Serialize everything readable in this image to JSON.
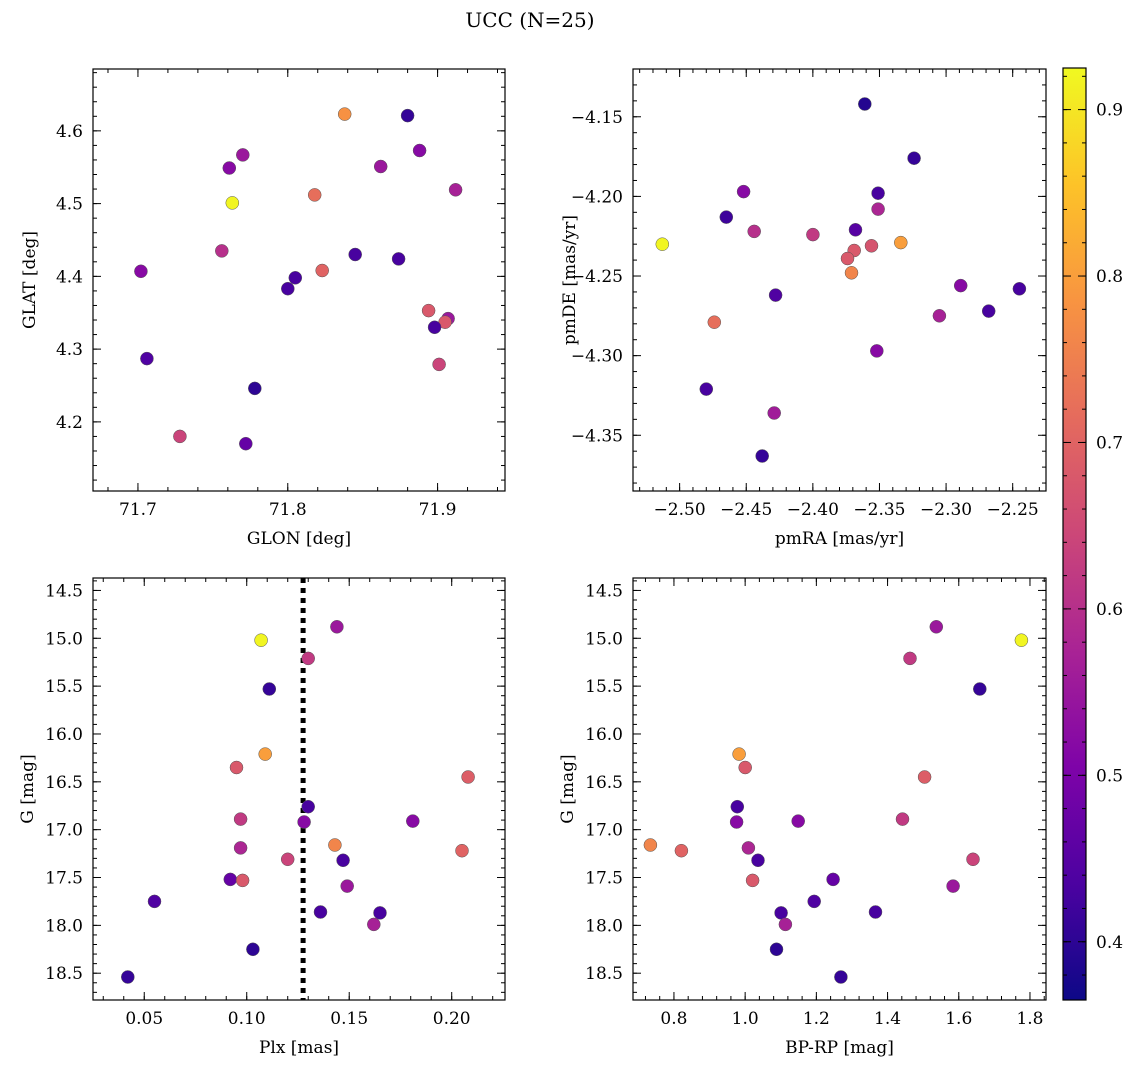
{
  "figure": {
    "title": "UCC (N=25)"
  },
  "colorbar": {
    "colormap": "plasma",
    "range": [
      0.365,
      0.925
    ],
    "ticks": [
      "0.4",
      "0.5",
      "0.6",
      "0.7",
      "0.8",
      "0.9"
    ],
    "tick_values": [
      0.4,
      0.5,
      0.6,
      0.7,
      0.8,
      0.9
    ]
  },
  "chart_data": [
    {
      "id": "galactic",
      "type": "scatter",
      "xlabel": "GLON [deg]",
      "ylabel": "GLAT [deg]",
      "xlim": [
        71.67,
        71.945
      ],
      "ylim": [
        4.105,
        4.685
      ],
      "xticks": [
        71.7,
        71.8,
        71.9
      ],
      "xtick_labels": [
        "71.7",
        "71.8",
        "71.9"
      ],
      "yticks": [
        4.2,
        4.3,
        4.4,
        4.5,
        4.6
      ],
      "ytick_labels": [
        "4.2",
        "4.3",
        "4.4",
        "4.5",
        "4.6"
      ],
      "x": [
        71.838,
        71.88,
        71.888,
        71.77,
        71.761,
        71.862,
        71.912,
        71.763,
        71.818,
        71.756,
        71.845,
        71.874,
        71.702,
        71.823,
        71.805,
        71.8,
        71.894,
        71.907,
        71.905,
        71.898,
        71.706,
        71.901,
        71.778,
        71.728,
        71.772
      ],
      "y": [
        4.623,
        4.621,
        4.573,
        4.567,
        4.549,
        4.551,
        4.519,
        4.501,
        4.512,
        4.435,
        4.43,
        4.424,
        4.407,
        4.408,
        4.398,
        4.383,
        4.353,
        4.342,
        4.337,
        4.33,
        4.287,
        4.279,
        4.246,
        4.18,
        4.17
      ]
    },
    {
      "id": "proper-motion",
      "type": "scatter",
      "xlabel": "pmRA [mas/yr]",
      "ylabel": "pmDE [mas/yr]",
      "xlim": [
        -2.535,
        -2.225
      ],
      "ylim": [
        -4.385,
        -4.12
      ],
      "xticks": [
        -2.5,
        -2.45,
        -2.4,
        -2.35,
        -2.3,
        -2.25
      ],
      "xtick_labels": [
        "−2.50",
        "−2.45",
        "−2.40",
        "−2.35",
        "−2.30",
        "−2.25"
      ],
      "yticks": [
        -4.35,
        -4.3,
        -4.25,
        -4.2,
        -4.15
      ],
      "ytick_labels": [
        "−4.35",
        "−4.30",
        "−4.25",
        "−4.20",
        "−4.15"
      ],
      "x": [
        -2.361,
        -2.324,
        -2.452,
        -2.351,
        -2.351,
        -2.465,
        -2.368,
        -2.444,
        -2.4,
        -2.513,
        -2.334,
        -2.369,
        -2.356,
        -2.374,
        -2.371,
        -2.289,
        -2.245,
        -2.268,
        -2.428,
        -2.305,
        -2.474,
        -2.352,
        -2.48,
        -2.429,
        -2.438
      ],
      "y": [
        -4.142,
        -4.176,
        -4.197,
        -4.198,
        -4.208,
        -4.213,
        -4.221,
        -4.222,
        -4.224,
        -4.23,
        -4.229,
        -4.234,
        -4.231,
        -4.239,
        -4.248,
        -4.256,
        -4.258,
        -4.272,
        -4.262,
        -4.275,
        -4.279,
        -4.297,
        -4.321,
        -4.336,
        -4.363
      ]
    },
    {
      "id": "parallax-magnitude",
      "type": "scatter",
      "xlabel": "Plx [mas]",
      "ylabel": "G [mag]",
      "xlim": [
        0.025,
        0.226
      ],
      "ylim": [
        18.78,
        14.37
      ],
      "xticks": [
        0.05,
        0.1,
        0.15,
        0.2
      ],
      "xtick_labels": [
        "0.05",
        "0.10",
        "0.15",
        "0.20"
      ],
      "yticks": [
        14.5,
        15.0,
        15.5,
        16.0,
        16.5,
        17.0,
        17.5,
        18.0,
        18.5
      ],
      "ytick_labels": [
        "14.5",
        "15.0",
        "15.5",
        "16.0",
        "16.5",
        "17.0",
        "17.5",
        "18.0",
        "18.5"
      ],
      "vline": 0.1275,
      "x": [
        0.144,
        0.107,
        0.13,
        0.111,
        0.109,
        0.095,
        0.208,
        0.13,
        0.097,
        0.181,
        0.128,
        0.143,
        0.097,
        0.205,
        0.12,
        0.147,
        0.092,
        0.098,
        0.149,
        0.055,
        0.136,
        0.165,
        0.162,
        0.103,
        0.042
      ],
      "y": [
        14.88,
        15.02,
        15.21,
        15.53,
        16.21,
        16.35,
        16.45,
        16.76,
        16.89,
        16.91,
        16.92,
        17.16,
        17.19,
        17.22,
        17.31,
        17.32,
        17.52,
        17.53,
        17.59,
        17.75,
        17.86,
        17.87,
        17.99,
        18.25,
        18.54
      ]
    },
    {
      "id": "color-magnitude",
      "type": "scatter",
      "xlabel": "BP-RP [mag]",
      "ylabel": "G [mag]",
      "xlim": [
        0.685,
        1.845
      ],
      "ylim": [
        18.78,
        14.37
      ],
      "xticks": [
        0.8,
        1.0,
        1.2,
        1.4,
        1.6,
        1.8
      ],
      "xtick_labels": [
        "0.8",
        "1.0",
        "1.2",
        "1.4",
        "1.6",
        "1.8"
      ],
      "yticks": [
        14.5,
        15.0,
        15.5,
        16.0,
        16.5,
        17.0,
        17.5,
        18.0,
        18.5
      ],
      "ytick_labels": [
        "14.5",
        "15.0",
        "15.5",
        "16.0",
        "16.5",
        "17.0",
        "17.5",
        "18.0",
        "18.5"
      ],
      "x": [
        1.537,
        1.776,
        1.463,
        1.659,
        0.983,
        1.0,
        1.504,
        0.978,
        1.442,
        1.149,
        0.976,
        0.734,
        1.009,
        0.821,
        1.64,
        1.036,
        1.247,
        1.021,
        1.584,
        1.194,
        1.366,
        1.101,
        1.113,
        1.088,
        1.269
      ],
      "y": [
        14.88,
        15.02,
        15.21,
        15.53,
        16.21,
        16.35,
        16.45,
        16.76,
        16.89,
        16.91,
        16.92,
        17.16,
        17.19,
        17.22,
        17.31,
        17.32,
        17.52,
        17.53,
        17.59,
        17.75,
        17.86,
        17.87,
        17.99,
        18.25,
        18.54
      ]
    }
  ],
  "point_colors": [
    {
      "id": "galactic",
      "c": [
        0.78,
        0.41,
        0.52,
        0.55,
        0.52,
        0.55,
        0.57,
        0.92,
        0.72,
        0.6,
        0.43,
        0.43,
        0.52,
        0.7,
        0.43,
        0.43,
        0.68,
        0.55,
        0.68,
        0.43,
        0.44,
        0.64,
        0.4,
        0.64,
        0.47
      ]
    },
    {
      "id": "proper-motion",
      "c": [
        0.39,
        0.41,
        0.52,
        0.43,
        0.58,
        0.42,
        0.45,
        0.6,
        0.62,
        0.92,
        0.8,
        0.68,
        0.67,
        0.68,
        0.76,
        0.52,
        0.43,
        0.43,
        0.44,
        0.57,
        0.72,
        0.52,
        0.43,
        0.56,
        0.41
      ]
    },
    {
      "id": "parallax-magnitude",
      "c": [
        0.55,
        0.92,
        0.62,
        0.41,
        0.8,
        0.68,
        0.69,
        0.43,
        0.62,
        0.52,
        0.52,
        0.76,
        0.58,
        0.7,
        0.64,
        0.43,
        0.47,
        0.68,
        0.55,
        0.44,
        0.43,
        0.43,
        0.57,
        0.4,
        0.41
      ]
    },
    {
      "id": "color-magnitude",
      "c": [
        0.55,
        0.92,
        0.62,
        0.41,
        0.8,
        0.68,
        0.69,
        0.43,
        0.62,
        0.52,
        0.52,
        0.76,
        0.58,
        0.7,
        0.64,
        0.43,
        0.47,
        0.68,
        0.55,
        0.44,
        0.43,
        0.43,
        0.57,
        0.4,
        0.41
      ]
    }
  ]
}
